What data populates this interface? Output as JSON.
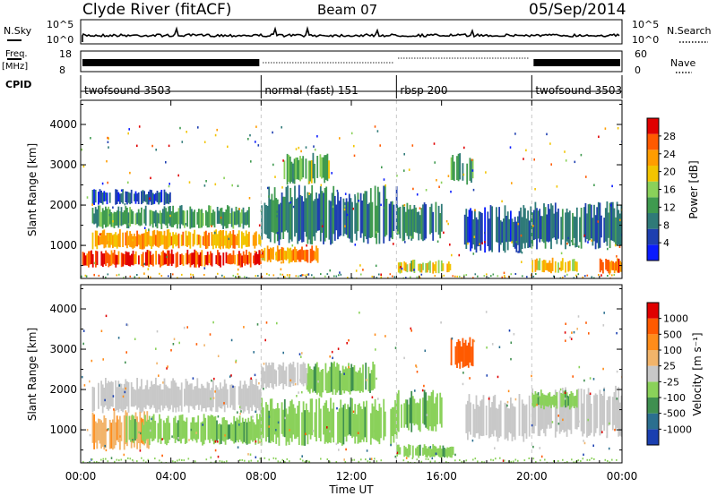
{
  "header": {
    "station": "Clyde River (fitACF)",
    "beam": "Beam 07",
    "date": "05/Sep/2014"
  },
  "left_labels": {
    "nsky": "N.Sky",
    "freq_line1": "Freq.",
    "freq_line2": "[MHz]",
    "cpid": "CPID"
  },
  "right_labels": {
    "nsearch": "N.Search",
    "nave": "Nave"
  },
  "nsky_scale": {
    "top": "10^5",
    "bottom": "10^0"
  },
  "freq_scale": {
    "top": "18",
    "bottom": "8"
  },
  "nave_scale": {
    "top": "60",
    "bottom": "0"
  },
  "cpid_segments": [
    {
      "label": "twofsound 3503",
      "start_hour": 0,
      "end_hour": 8
    },
    {
      "label": "normal (fast) 151",
      "start_hour": 8,
      "end_hour": 14
    },
    {
      "label": "rbsp 200",
      "start_hour": 14,
      "end_hour": 20
    },
    {
      "label": "twofsound 3503",
      "start_hour": 20,
      "end_hour": 24
    }
  ],
  "x_axis": {
    "label": "Time UT",
    "ticks": [
      "00:00",
      "04:00",
      "08:00",
      "12:00",
      "16:00",
      "20:00",
      "00:00"
    ]
  },
  "chart_data": [
    {
      "type": "heatmap",
      "panel": "power",
      "ylabel": "Slant Range [km]",
      "yticks": [
        "1000",
        "2000",
        "3000",
        "4000"
      ],
      "ylim": [
        180,
        4600
      ],
      "xlim_hours": [
        0,
        24
      ],
      "colorbar": {
        "label": "Power [dB]",
        "ticks": [
          "4",
          "8",
          "12",
          "16",
          "20",
          "24",
          "28"
        ],
        "range": [
          0,
          32
        ],
        "colors": [
          "#0a1bff",
          "#1e3fb0",
          "#2f7a78",
          "#3f9a4f",
          "#8ad15a",
          "#f2c400",
          "#ff9d00",
          "#ff5a00",
          "#e00000"
        ]
      },
      "echo_regions": [
        {
          "t0": 0.0,
          "t1": 8.0,
          "r0": 450,
          "r1": 900,
          "value": 28
        },
        {
          "t0": 0.5,
          "t1": 8.0,
          "r0": 900,
          "r1": 1400,
          "value": 22
        },
        {
          "t0": 0.5,
          "t1": 7.5,
          "r0": 1400,
          "r1": 2000,
          "value": 12
        },
        {
          "t0": 0.5,
          "t1": 4.0,
          "r0": 2000,
          "r1": 2400,
          "value": 6
        },
        {
          "t0": 8.0,
          "t1": 10.5,
          "r0": 550,
          "r1": 1000,
          "value": 24
        },
        {
          "t0": 8.0,
          "t1": 14.0,
          "r0": 1000,
          "r1": 2500,
          "value": 9
        },
        {
          "t0": 9.0,
          "t1": 11.0,
          "r0": 2500,
          "r1": 3300,
          "value": 14
        },
        {
          "t0": 14.0,
          "t1": 16.4,
          "r0": 300,
          "r1": 650,
          "value": 18
        },
        {
          "t0": 14.0,
          "t1": 16.0,
          "r0": 1100,
          "r1": 2100,
          "value": 10
        },
        {
          "t0": 16.4,
          "t1": 17.4,
          "r0": 2500,
          "r1": 3300,
          "value": 12
        },
        {
          "t0": 17.0,
          "t1": 20.0,
          "r0": 800,
          "r1": 2000,
          "value": 7
        },
        {
          "t0": 20.0,
          "t1": 24.0,
          "r0": 900,
          "r1": 2100,
          "value": 8
        },
        {
          "t0": 20.0,
          "t1": 22.0,
          "r0": 300,
          "r1": 700,
          "value": 20
        },
        {
          "t0": 23.0,
          "t1": 24.0,
          "r0": 300,
          "r1": 700,
          "value": 26
        }
      ]
    },
    {
      "type": "heatmap",
      "panel": "velocity",
      "ylabel": "Slant Range [km]",
      "yticks": [
        "1000",
        "2000",
        "3000",
        "4000"
      ],
      "ylim": [
        180,
        4600
      ],
      "xlim_hours": [
        0,
        24
      ],
      "colorbar": {
        "label": "Velocity [m s⁻¹]",
        "ticks": [
          "1000",
          "500",
          "100",
          "25",
          "-25",
          "-100",
          "-500",
          "-1000"
        ],
        "range": [
          -1200,
          1200
        ],
        "colors": [
          "#1a3fb0",
          "#2b6f8f",
          "#3f8f50",
          "#8ad15a",
          "#c8c8c8",
          "#f2b46a",
          "#ff8c1a",
          "#ff5a00",
          "#e00000"
        ]
      },
      "echo_regions": [
        {
          "t0": 0.5,
          "t1": 8.0,
          "r0": 1400,
          "r1": 2300,
          "value": 0
        },
        {
          "t0": 0.5,
          "t1": 3.0,
          "r0": 500,
          "r1": 1500,
          "value": 300
        },
        {
          "t0": 2.0,
          "t1": 8.0,
          "r0": 600,
          "r1": 1400,
          "value": -300
        },
        {
          "t0": 8.0,
          "t1": 14.0,
          "r0": 600,
          "r1": 1800,
          "value": -300
        },
        {
          "t0": 10.0,
          "t1": 13.0,
          "r0": 1800,
          "r1": 2700,
          "value": -300
        },
        {
          "t0": 8.0,
          "t1": 10.0,
          "r0": 2000,
          "r1": 2700,
          "value": 0
        },
        {
          "t0": 14.0,
          "t1": 16.5,
          "r0": 300,
          "r1": 650,
          "value": -300
        },
        {
          "t0": 14.0,
          "t1": 16.0,
          "r0": 900,
          "r1": 2000,
          "value": -300
        },
        {
          "t0": 16.4,
          "t1": 17.4,
          "r0": 2500,
          "r1": 3300,
          "value": 800
        },
        {
          "t0": 17.0,
          "t1": 20.0,
          "r0": 700,
          "r1": 1900,
          "value": 0
        },
        {
          "t0": 20.0,
          "t1": 24.0,
          "r0": 800,
          "r1": 2100,
          "value": 0
        },
        {
          "t0": 20.0,
          "t1": 22.0,
          "r0": 1500,
          "r1": 2000,
          "value": -300
        }
      ]
    }
  ]
}
